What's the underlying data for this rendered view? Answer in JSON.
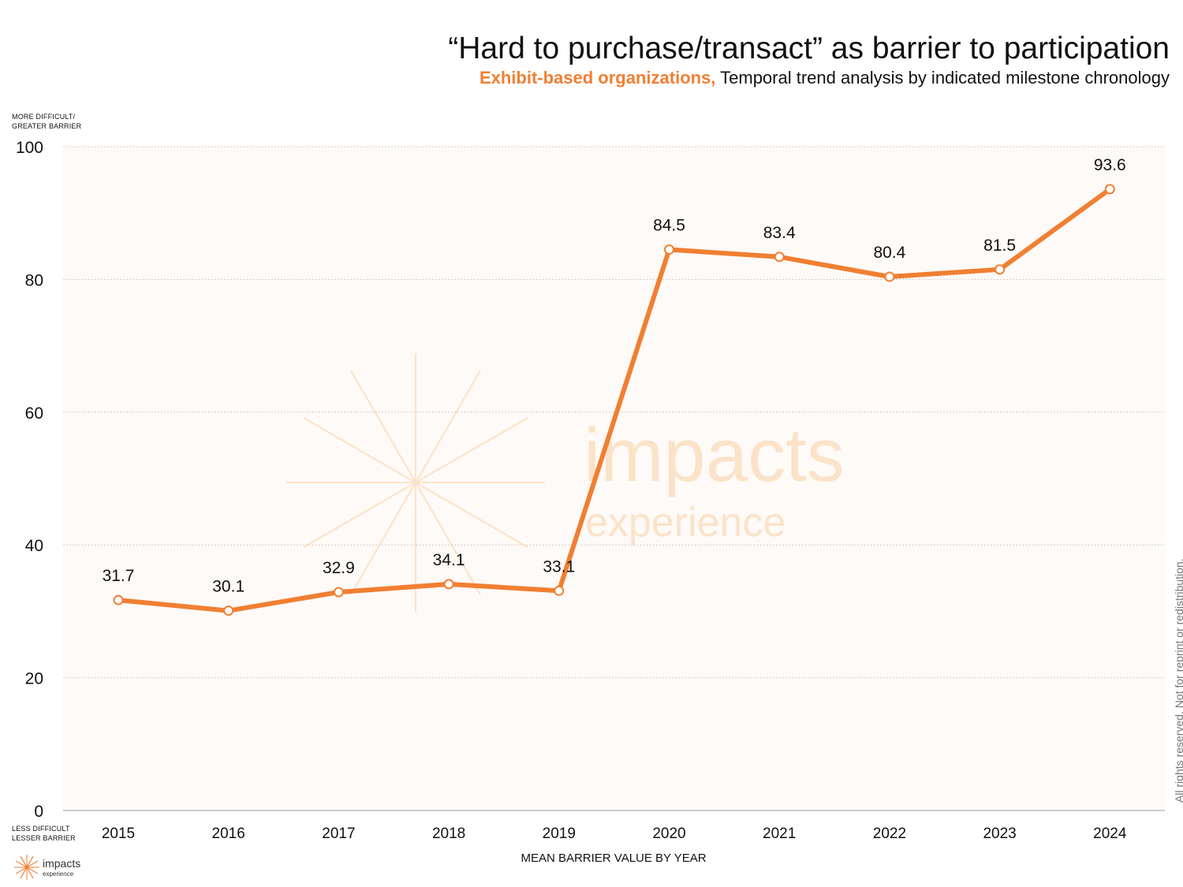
{
  "title": "“Hard to purchase/transact” as barrier to participation",
  "subtitle_accent": "Exhibit-based organizations,",
  "subtitle_rest": " Temporal trend analysis by indicated milestone chronology",
  "y_note_top": [
    "MORE DIFFICULT/",
    "GREATER BARRIER"
  ],
  "y_note_bottom": [
    "LESS DIFFICULT",
    "LESSER BARRIER"
  ],
  "copyright": "All rights reserved. Not for reprint or redistribution.",
  "logo": {
    "line1": "impacts",
    "line2": "experience"
  },
  "watermark": {
    "line1": "impacts",
    "line2": "experience"
  },
  "colors": {
    "accent": "#f07f32",
    "plot_bg": "#fefaf7",
    "grid": "#d9c9c9",
    "watermark": "#fbe3c9"
  },
  "chart_data": {
    "type": "line",
    "categories": [
      "2015",
      "2016",
      "2017",
      "2018",
      "2019",
      "2020",
      "2021",
      "2022",
      "2023",
      "2024"
    ],
    "values": [
      31.7,
      30.1,
      32.9,
      34.1,
      33.1,
      84.5,
      83.4,
      80.4,
      81.5,
      93.6
    ],
    "data_labels": [
      "31.7",
      "30.1",
      "32.9",
      "34.1",
      "33.1",
      "84.5",
      "83.4",
      "80.4",
      "81.5",
      "93.6"
    ],
    "yticks": [
      0,
      20,
      40,
      60,
      80,
      100
    ],
    "ylim": [
      0,
      100
    ],
    "xlabel": "MEAN BARRIER VALUE BY YEAR",
    "ylabel": "",
    "grid": true,
    "grid_style": "dotted",
    "legend": "none"
  }
}
